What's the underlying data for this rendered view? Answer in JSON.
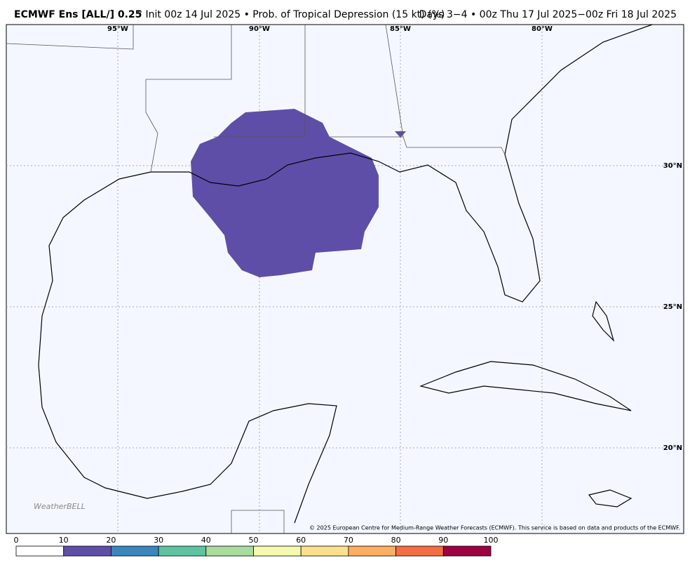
{
  "header": {
    "title_bold": "ECMWF Ens [ALL/] 0.25",
    "title_rest": "° Init 00z 14 Jul 2025 • Prob. of Tropical Depression (15 kt) (%)",
    "right": "Days 3−4 • 00z Thu 17 Jul 2025−00z Fri 18 Jul 2025"
  },
  "map": {
    "lon_labels": [
      "95°W",
      "90°W",
      "85°W",
      "80°W"
    ],
    "lat_labels": [
      "30°N",
      "25°N",
      "20°N"
    ],
    "copyright": "© 2025 European Centre for Medium-Range Weather Forecasts (ECMWF). This service is based on data and products of the ECMWF.",
    "watermark": "WeatherBELL"
  },
  "colorbar": {
    "ticks": [
      0,
      10,
      20,
      30,
      40,
      50,
      60,
      70,
      80,
      90,
      100
    ],
    "colors": [
      "#ffffff",
      "#5f4ea8",
      "#3a86bd",
      "#5dc3a0",
      "#a8dc9c",
      "#f4f9ad",
      "#fde08b",
      "#fdae61",
      "#f46d43",
      "#9e0142"
    ]
  }
}
